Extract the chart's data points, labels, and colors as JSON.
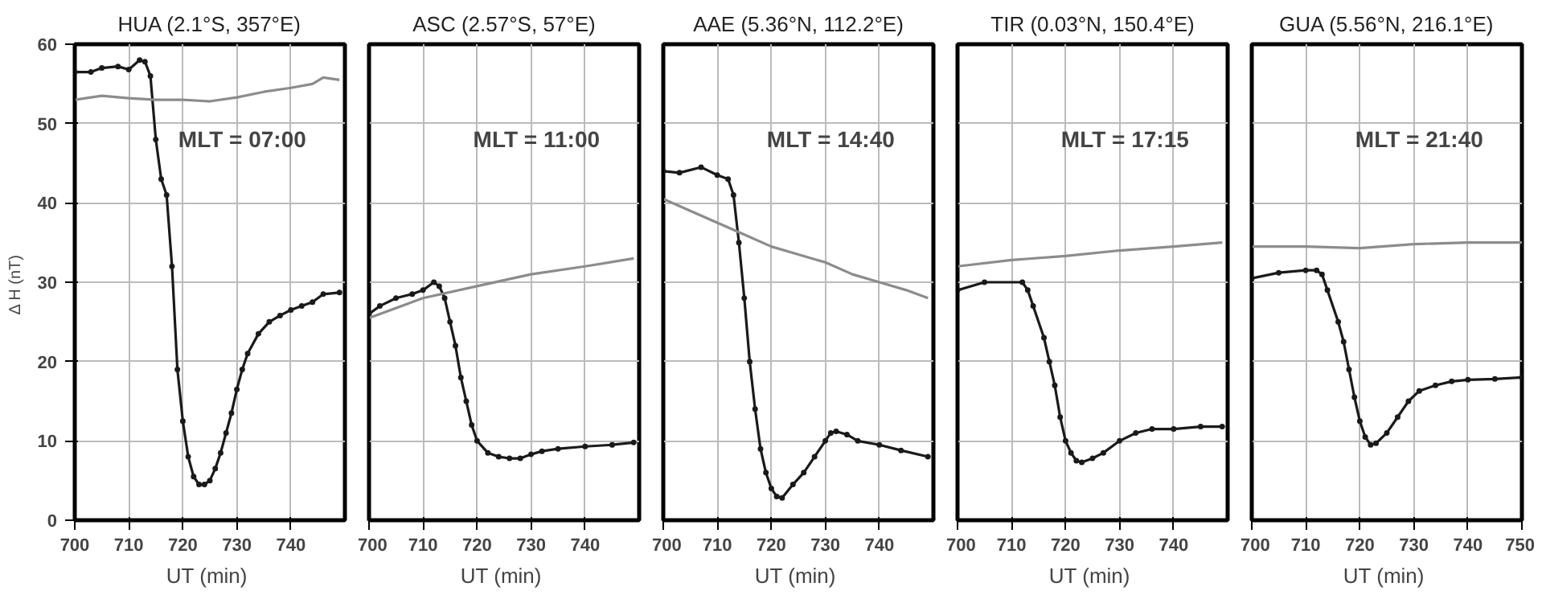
{
  "chart_data": [
    {
      "type": "line",
      "title": "HUA (2.1°S, 357°E)",
      "xlabel": "UT  (min)",
      "ylabel": "Δ H  (nT)",
      "annotations": [
        "MLT = 07:00"
      ],
      "xlim": [
        700,
        750
      ],
      "xticks": [
        700,
        710,
        720,
        730,
        740
      ],
      "ylim": [
        0,
        60
      ],
      "yticks": [
        0,
        10,
        20,
        30,
        40,
        50,
        60
      ],
      "grid": true,
      "series": [
        {
          "color": "#1a1a1a",
          "marker": "circle",
          "x": [
            700,
            703,
            705,
            708,
            710,
            712,
            713,
            714,
            715,
            716,
            717,
            718,
            719,
            720,
            721,
            722,
            723,
            724,
            725,
            726,
            727,
            728,
            729,
            730,
            731,
            732,
            734,
            736,
            738,
            740,
            742,
            744,
            746,
            749
          ],
          "values": [
            56.5,
            56.5,
            57,
            57.2,
            56.8,
            58,
            57.8,
            56,
            48,
            43,
            41,
            32,
            19,
            12.5,
            8,
            5.5,
            4.5,
            4.5,
            5,
            6.5,
            8.5,
            11,
            13.5,
            16.5,
            19,
            21,
            23.5,
            25,
            25.8,
            26.5,
            27,
            27.5,
            28.5,
            28.7
          ]
        },
        {
          "color": "#8c8c8c",
          "marker": "none",
          "x": [
            700,
            705,
            710,
            715,
            720,
            725,
            730,
            735,
            740,
            744,
            746,
            749
          ],
          "values": [
            53,
            53.5,
            53.2,
            53,
            53,
            52.8,
            53.3,
            54,
            54.5,
            55,
            55.8,
            55.5
          ]
        }
      ]
    },
    {
      "type": "line",
      "title": "ASC (2.57°S, 57°E)",
      "xlabel": "UT  (min)",
      "annotations": [
        "MLT = 11:00"
      ],
      "xlim": [
        700,
        750
      ],
      "xticks": [
        700,
        710,
        720,
        730,
        740
      ],
      "ylim": [
        0,
        60
      ],
      "yticks": [
        0,
        10,
        20,
        30,
        40,
        50,
        60
      ],
      "grid": true,
      "tick_labels": "x",
      "series": [
        {
          "color": "#1a1a1a",
          "marker": "circle",
          "x": [
            700,
            702,
            705,
            708,
            710,
            712,
            713,
            714,
            715,
            716,
            717,
            718,
            719,
            720,
            722,
            724,
            726,
            728,
            730,
            732,
            735,
            740,
            745,
            749
          ],
          "values": [
            26,
            27,
            28,
            28.5,
            29,
            30,
            29.5,
            28,
            25,
            22,
            18,
            15,
            12,
            10,
            8.5,
            8,
            7.8,
            7.8,
            8.3,
            8.7,
            9,
            9.3,
            9.5,
            9.8
          ]
        },
        {
          "color": "#8c8c8c",
          "marker": "none",
          "x": [
            700,
            710,
            720,
            730,
            740,
            749
          ],
          "values": [
            25.5,
            28,
            29.5,
            31,
            32,
            33
          ]
        }
      ]
    },
    {
      "type": "line",
      "title": "AAE (5.36°N, 112.2°E)",
      "xlabel": "UT  (min)",
      "annotations": [
        "MLT = 14:40"
      ],
      "xlim": [
        700,
        750
      ],
      "xticks": [
        700,
        710,
        720,
        730,
        740
      ],
      "ylim": [
        0,
        60
      ],
      "yticks": [
        0,
        10,
        20,
        30,
        40,
        50,
        60
      ],
      "grid": true,
      "tick_labels": "x",
      "series": [
        {
          "color": "#1a1a1a",
          "marker": "circle",
          "x": [
            700,
            703,
            707,
            710,
            712,
            713,
            714,
            715,
            716,
            717,
            718,
            719,
            720,
            721,
            722,
            724,
            726,
            728,
            730,
            731,
            732,
            734,
            736,
            740,
            744,
            749
          ],
          "values": [
            44,
            43.8,
            44.5,
            43.5,
            43,
            41,
            35,
            28,
            20,
            14,
            9,
            6,
            4,
            3,
            2.8,
            4.5,
            6,
            8,
            10,
            11,
            11.2,
            10.8,
            10,
            9.5,
            8.8,
            8
          ]
        },
        {
          "color": "#8c8c8c",
          "marker": "none",
          "x": [
            700,
            705,
            710,
            715,
            720,
            725,
            730,
            735,
            740,
            745,
            749
          ],
          "values": [
            40.5,
            39,
            37.5,
            36,
            34.5,
            33.5,
            32.5,
            31,
            30,
            29,
            28
          ]
        }
      ]
    },
    {
      "type": "line",
      "title": "TIR (0.03°N, 150.4°E)",
      "xlabel": "UT  (min)",
      "annotations": [
        "MLT = 17:15"
      ],
      "xlim": [
        700,
        750
      ],
      "xticks": [
        700,
        710,
        720,
        730,
        740
      ],
      "ylim": [
        0,
        60
      ],
      "yticks": [
        0,
        10,
        20,
        30,
        40,
        50,
        60
      ],
      "grid": true,
      "tick_labels": "x",
      "series": [
        {
          "color": "#1a1a1a",
          "marker": "circle",
          "x": [
            700,
            705,
            712,
            713,
            714,
            716,
            717,
            718,
            719,
            720,
            721,
            722,
            723,
            725,
            727,
            730,
            733,
            736,
            740,
            745,
            749
          ],
          "values": [
            29,
            30,
            30,
            29,
            27,
            23,
            20,
            17,
            13,
            10,
            8.5,
            7.5,
            7.3,
            7.8,
            8.5,
            10,
            11,
            11.5,
            11.5,
            11.8,
            11.8
          ]
        },
        {
          "color": "#8c8c8c",
          "marker": "none",
          "x": [
            700,
            710,
            720,
            730,
            740,
            749
          ],
          "values": [
            32,
            32.8,
            33.3,
            34,
            34.5,
            35
          ]
        }
      ]
    },
    {
      "type": "line",
      "title": "GUA (5.56°N, 216.1°E)",
      "xlabel": "UT  (min)",
      "annotations": [
        "MLT = 21:40"
      ],
      "xlim": [
        700,
        750
      ],
      "xticks": [
        700,
        710,
        720,
        730,
        740,
        750
      ],
      "ylim": [
        0,
        60
      ],
      "yticks": [
        0,
        10,
        20,
        30,
        40,
        50,
        60
      ],
      "grid": true,
      "tick_labels": "x",
      "series": [
        {
          "color": "#1a1a1a",
          "marker": "circle",
          "x": [
            700,
            705,
            710,
            712,
            713,
            714,
            716,
            717,
            718,
            719,
            720,
            721,
            722,
            723,
            725,
            727,
            729,
            731,
            734,
            737,
            740,
            745,
            750
          ],
          "values": [
            30.5,
            31.2,
            31.5,
            31.5,
            31,
            29,
            25,
            22.5,
            19,
            15.5,
            12.5,
            10.5,
            9.5,
            9.7,
            11,
            13,
            15,
            16.3,
            17,
            17.5,
            17.7,
            17.8,
            18
          ]
        },
        {
          "color": "#8c8c8c",
          "marker": "none",
          "x": [
            700,
            710,
            720,
            730,
            740,
            750
          ],
          "values": [
            34.5,
            34.5,
            34.3,
            34.8,
            35,
            35
          ]
        }
      ]
    }
  ]
}
